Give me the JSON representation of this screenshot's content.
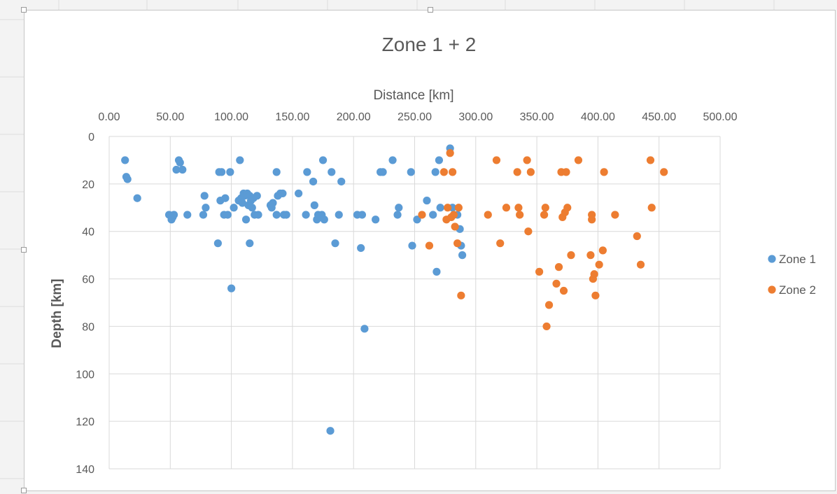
{
  "chart_data": {
    "type": "scatter",
    "title": "Zone 1 + 2",
    "xlabel": "Distance [km]",
    "ylabel": "Depth [km]",
    "xlim": [
      0,
      500
    ],
    "ylim": [
      0,
      140
    ],
    "x_ticks": [
      "0.00",
      "50.00",
      "100.00",
      "150.00",
      "200.00",
      "250.00",
      "300.00",
      "350.00",
      "400.00",
      "450.00",
      "500.00"
    ],
    "y_ticks": [
      "0",
      "20",
      "40",
      "60",
      "80",
      "100",
      "120",
      "140"
    ],
    "x_axis_position": "top",
    "y_axis_reversed": true,
    "grid": true,
    "legend_position": "right",
    "series": [
      {
        "name": "Zone 1",
        "color": "#5b9bd5",
        "points": [
          [
            13,
            10
          ],
          [
            14,
            17
          ],
          [
            15,
            18
          ],
          [
            23,
            26
          ],
          [
            49,
            33
          ],
          [
            51,
            35
          ],
          [
            52,
            34
          ],
          [
            53,
            33
          ],
          [
            55,
            14
          ],
          [
            57,
            10
          ],
          [
            58,
            11
          ],
          [
            60,
            14
          ],
          [
            64,
            33
          ],
          [
            77,
            33
          ],
          [
            78,
            25
          ],
          [
            79,
            30
          ],
          [
            89,
            45
          ],
          [
            90,
            15
          ],
          [
            91,
            27
          ],
          [
            92,
            15
          ],
          [
            94,
            33
          ],
          [
            95,
            26
          ],
          [
            97,
            33
          ],
          [
            99,
            15
          ],
          [
            102,
            30
          ],
          [
            106,
            27
          ],
          [
            107,
            10
          ],
          [
            108,
            26
          ],
          [
            109,
            28
          ],
          [
            110,
            24
          ],
          [
            111,
            25
          ],
          [
            112,
            35
          ],
          [
            113,
            24
          ],
          [
            114,
            29
          ],
          [
            115,
            25
          ],
          [
            116,
            27
          ],
          [
            117,
            30
          ],
          [
            118,
            26
          ],
          [
            119,
            33
          ],
          [
            121,
            25
          ],
          [
            122,
            33
          ],
          [
            100,
            64
          ],
          [
            115,
            45
          ],
          [
            132,
            29
          ],
          [
            133,
            30
          ],
          [
            134,
            28
          ],
          [
            137,
            33
          ],
          [
            138,
            25
          ],
          [
            140,
            24
          ],
          [
            142,
            24
          ],
          [
            143,
            33
          ],
          [
            145,
            33
          ],
          [
            137,
            15
          ],
          [
            155,
            24
          ],
          [
            161,
            33
          ],
          [
            162,
            15
          ],
          [
            167,
            19
          ],
          [
            168,
            29
          ],
          [
            170,
            35
          ],
          [
            171,
            33
          ],
          [
            172,
            34
          ],
          [
            174,
            33
          ],
          [
            175,
            10
          ],
          [
            176,
            35
          ],
          [
            181,
            124
          ],
          [
            182,
            15
          ],
          [
            185,
            45
          ],
          [
            188,
            33
          ],
          [
            190,
            19
          ],
          [
            203,
            33
          ],
          [
            206,
            47
          ],
          [
            207,
            33
          ],
          [
            209,
            81
          ],
          [
            218,
            35
          ],
          [
            222,
            15
          ],
          [
            224,
            15
          ],
          [
            232,
            10
          ],
          [
            236,
            33
          ],
          [
            237,
            30
          ],
          [
            247,
            15
          ],
          [
            248,
            46
          ],
          [
            252,
            35
          ],
          [
            260,
            27
          ],
          [
            265,
            33
          ],
          [
            267,
            15
          ],
          [
            268,
            57
          ],
          [
            270,
            10
          ],
          [
            271,
            30
          ],
          [
            279,
            5
          ],
          [
            281,
            30
          ],
          [
            285,
            33
          ],
          [
            287,
            39
          ],
          [
            288,
            46
          ],
          [
            289,
            50
          ]
        ]
      },
      {
        "name": "Zone 2",
        "color": "#ed7d31",
        "points": [
          [
            256,
            33
          ],
          [
            262,
            46
          ],
          [
            274,
            15
          ],
          [
            276,
            35
          ],
          [
            277,
            30
          ],
          [
            279,
            7
          ],
          [
            280,
            34
          ],
          [
            281,
            15
          ],
          [
            282,
            33
          ],
          [
            283,
            38
          ],
          [
            285,
            45
          ],
          [
            286,
            30
          ],
          [
            288,
            67
          ],
          [
            310,
            33
          ],
          [
            317,
            10
          ],
          [
            320,
            45
          ],
          [
            325,
            30
          ],
          [
            334,
            15
          ],
          [
            335,
            30
          ],
          [
            336,
            33
          ],
          [
            342,
            10
          ],
          [
            343,
            40
          ],
          [
            345,
            15
          ],
          [
            352,
            57
          ],
          [
            356,
            33
          ],
          [
            357,
            30
          ],
          [
            358,
            80
          ],
          [
            360,
            71
          ],
          [
            366,
            62
          ],
          [
            368,
            55
          ],
          [
            370,
            15
          ],
          [
            371,
            34
          ],
          [
            372,
            65
          ],
          [
            373,
            32
          ],
          [
            374,
            15
          ],
          [
            375,
            30
          ],
          [
            378,
            50
          ],
          [
            384,
            10
          ],
          [
            394,
            50
          ],
          [
            395,
            33
          ],
          [
            395,
            35
          ],
          [
            396,
            60
          ],
          [
            397,
            58
          ],
          [
            398,
            67
          ],
          [
            401,
            54
          ],
          [
            404,
            48
          ],
          [
            405,
            15
          ],
          [
            414,
            33
          ],
          [
            432,
            42
          ],
          [
            435,
            54
          ],
          [
            443,
            10
          ],
          [
            444,
            30
          ],
          [
            454,
            15
          ]
        ]
      }
    ]
  }
}
